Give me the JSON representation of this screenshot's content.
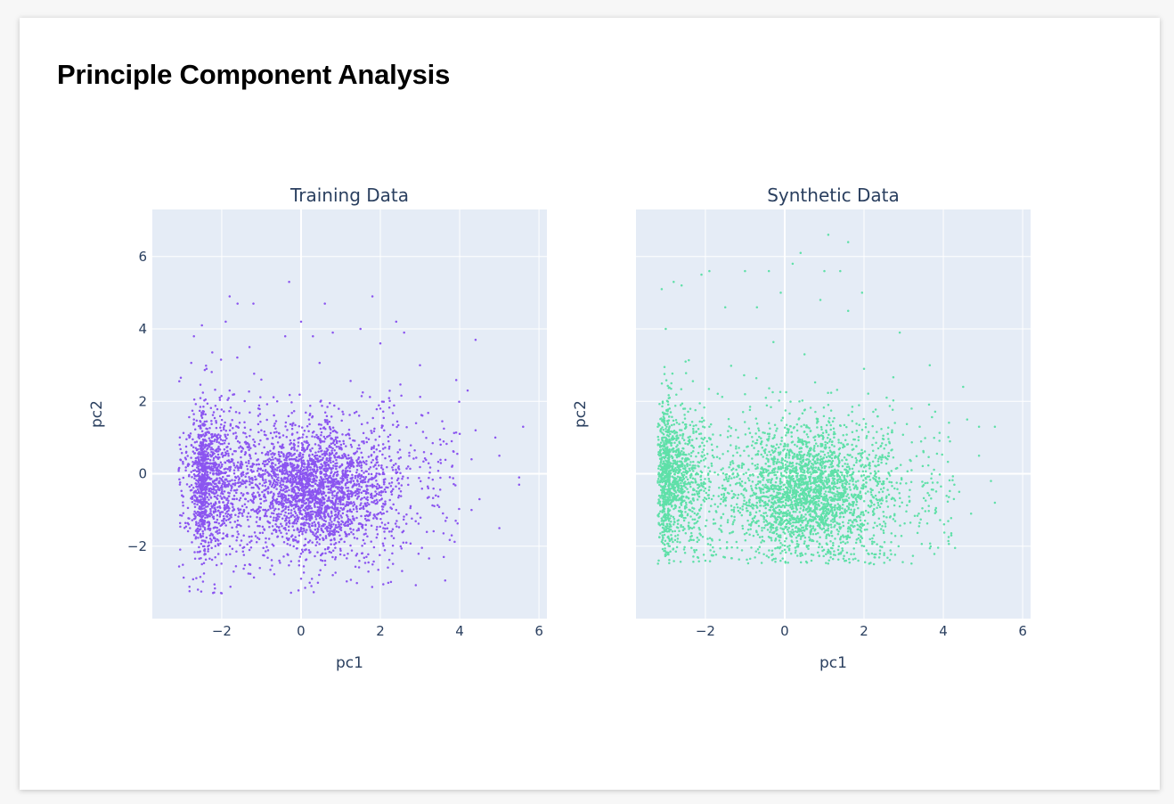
{
  "page": {
    "title": "Principle Component Analysis"
  },
  "theme": {
    "plot_bg": "#e5ecf6",
    "grid_color": "#ffffff",
    "text_color": "#2a3f5f",
    "training_color": "#8b55f0",
    "synthetic_color": "#5fe0a8"
  },
  "chart_data": [
    {
      "type": "scatter",
      "title": "Training Data",
      "xlabel": "pc1",
      "ylabel": "pc2",
      "xlim": [
        -3.75,
        6.2
      ],
      "ylim": [
        -4.0,
        7.3
      ],
      "x_ticks": [
        -2,
        0,
        2,
        4,
        6
      ],
      "y_ticks": [
        -2,
        0,
        2,
        4,
        6
      ],
      "tick_labels_x": [
        "−2",
        "0",
        "2",
        "4",
        "6"
      ],
      "tick_labels_y": [
        "−2",
        "0",
        "2",
        "4",
        "6"
      ],
      "show_y_tick_labels": true,
      "grid": true,
      "color": "#8b55f0",
      "approx_point_count": 4000,
      "distribution": {
        "x_range": [
          -3.1,
          5.6
        ],
        "y_range": [
          -3.3,
          5.35
        ],
        "dense_center": [
          0.3,
          -0.4
        ],
        "secondary_cluster": [
          -2.4,
          -0.2
        ]
      },
      "points": [
        [
          -2.0,
          -3.3
        ],
        [
          -2.6,
          -3.2
        ],
        [
          -1.3,
          -2.5
        ],
        [
          -1.7,
          -2.7
        ],
        [
          0.0,
          -2.9
        ],
        [
          0.8,
          -2.8
        ],
        [
          1.7,
          -2.7
        ],
        [
          2.3,
          -2.2
        ],
        [
          3.6,
          -2.3
        ],
        [
          3.8,
          -1.7
        ],
        [
          -1.8,
          4.9
        ],
        [
          -1.6,
          4.7
        ],
        [
          -1.2,
          4.7
        ],
        [
          -2.5,
          4.1
        ],
        [
          -2.7,
          3.8
        ],
        [
          -1.9,
          4.2
        ],
        [
          -0.3,
          5.3
        ],
        [
          0.0,
          4.2
        ],
        [
          0.6,
          4.7
        ],
        [
          1.8,
          4.9
        ],
        [
          1.5,
          4.0
        ],
        [
          2.4,
          4.2
        ],
        [
          2.6,
          3.9
        ],
        [
          4.4,
          3.7
        ],
        [
          -0.4,
          3.8
        ],
        [
          0.3,
          3.8
        ],
        [
          0.8,
          3.9
        ],
        [
          -1.3,
          3.5
        ],
        [
          2.0,
          3.6
        ],
        [
          3.0,
          3.0
        ],
        [
          4.2,
          2.3
        ],
        [
          4.4,
          1.2
        ],
        [
          4.9,
          1.0
        ],
        [
          5.6,
          1.3
        ],
        [
          4.0,
          1.1
        ],
        [
          3.8,
          0.9
        ],
        [
          4.3,
          0.4
        ],
        [
          5.0,
          0.5
        ],
        [
          5.5,
          -0.1
        ],
        [
          5.5,
          -0.3
        ],
        [
          4.5,
          -0.7
        ],
        [
          4.3,
          -1.0
        ],
        [
          5.0,
          -1.5
        ],
        [
          3.9,
          -1.3
        ],
        [
          3.4,
          -0.6
        ],
        [
          3.1,
          0.6
        ],
        [
          2.9,
          1.4
        ],
        [
          2.7,
          0.2
        ],
        [
          2.4,
          -1.0
        ],
        [
          2.1,
          -1.6
        ],
        [
          -3.0,
          -0.6
        ],
        [
          -2.9,
          0.4
        ],
        [
          -2.8,
          -1.5
        ],
        [
          -2.7,
          1.5
        ],
        [
          -2.6,
          -0.2
        ],
        [
          -2.4,
          0.8
        ],
        [
          -2.3,
          -1.1
        ],
        [
          -2.2,
          1.7
        ],
        [
          -2.1,
          -0.6
        ],
        [
          -2.0,
          0.2
        ],
        [
          -1.8,
          2.3
        ],
        [
          -1.6,
          -1.6
        ],
        [
          -1.4,
          0.6
        ],
        [
          -1.2,
          -0.8
        ],
        [
          -1.0,
          1.2
        ],
        [
          -0.8,
          -0.2
        ],
        [
          -0.6,
          2.0
        ],
        [
          -0.4,
          -1.3
        ],
        [
          -0.2,
          0.4
        ],
        [
          0.0,
          -0.6
        ],
        [
          0.2,
          1.5
        ],
        [
          0.4,
          -0.1
        ],
        [
          0.6,
          -1.4
        ],
        [
          0.8,
          0.7
        ],
        [
          1.0,
          -0.4
        ],
        [
          1.2,
          1.1
        ],
        [
          1.4,
          -0.9
        ],
        [
          1.6,
          0.3
        ],
        [
          1.8,
          -0.3
        ],
        [
          2.0,
          1.8
        ]
      ]
    },
    {
      "type": "scatter",
      "title": "Synthetic Data",
      "xlabel": "pc1",
      "ylabel": "pc2",
      "xlim": [
        -3.75,
        6.2
      ],
      "ylim": [
        -4.0,
        7.3
      ],
      "x_ticks": [
        -2,
        0,
        2,
        4,
        6
      ],
      "y_ticks": [
        -2,
        0,
        2,
        4,
        6
      ],
      "tick_labels_x": [
        "−2",
        "0",
        "2",
        "4",
        "6"
      ],
      "tick_labels_y": [],
      "show_y_tick_labels": false,
      "grid": true,
      "color": "#5fe0a8",
      "approx_point_count": 4000,
      "distribution": {
        "x_range": [
          -3.2,
          5.3
        ],
        "y_range": [
          -2.5,
          6.6
        ],
        "dense_center": [
          0.6,
          -0.5
        ],
        "secondary_cluster": [
          -2.9,
          0.0
        ]
      },
      "points": [
        [
          1.1,
          6.6
        ],
        [
          1.6,
          6.4
        ],
        [
          0.4,
          6.1
        ],
        [
          0.2,
          5.8
        ],
        [
          -0.4,
          5.6
        ],
        [
          1.0,
          5.6
        ],
        [
          1.4,
          5.6
        ],
        [
          -1.0,
          5.6
        ],
        [
          -2.1,
          5.5
        ],
        [
          -1.9,
          5.6
        ],
        [
          -2.8,
          5.3
        ],
        [
          -2.6,
          5.2
        ],
        [
          -3.1,
          5.1
        ],
        [
          1.95,
          5.0
        ],
        [
          -0.1,
          5.0
        ],
        [
          0.9,
          4.8
        ],
        [
          1.6,
          4.5
        ],
        [
          -0.7,
          4.6
        ],
        [
          -1.5,
          4.6
        ],
        [
          -3.0,
          4.0
        ],
        [
          2.9,
          3.9
        ],
        [
          4.5,
          2.4
        ],
        [
          4.6,
          1.5
        ],
        [
          5.3,
          1.3
        ],
        [
          4.9,
          1.3
        ],
        [
          4.9,
          0.5
        ],
        [
          5.2,
          -0.2
        ],
        [
          4.4,
          -0.5
        ],
        [
          5.3,
          -0.8
        ],
        [
          4.7,
          -1.1
        ],
        [
          4.2,
          -1.7
        ],
        [
          3.8,
          -1.0
        ],
        [
          3.5,
          0.6
        ],
        [
          3.2,
          1.8
        ],
        [
          2.4,
          -1.4
        ],
        [
          2.0,
          -2.0
        ],
        [
          0.0,
          -2.1
        ],
        [
          1.1,
          -2.1
        ],
        [
          -2.0,
          -2.4
        ],
        [
          -2.9,
          -2.0
        ],
        [
          -3.1,
          -0.6
        ],
        [
          -3.0,
          0.9
        ],
        [
          -2.9,
          2.1
        ],
        [
          -2.8,
          -1.4
        ],
        [
          -2.7,
          0.2
        ],
        [
          -2.5,
          3.1
        ],
        [
          -2.2,
          -0.3
        ],
        [
          -1.9,
          1.3
        ],
        [
          -1.6,
          -1.2
        ],
        [
          -1.3,
          0.5
        ],
        [
          -1.0,
          2.2
        ],
        [
          -0.7,
          -0.8
        ],
        [
          -0.4,
          1.4
        ],
        [
          -0.1,
          -1.5
        ],
        [
          0.2,
          0.3
        ],
        [
          0.5,
          3.3
        ],
        [
          0.8,
          -0.6
        ],
        [
          1.1,
          1.9
        ],
        [
          1.4,
          -1.1
        ],
        [
          1.7,
          0.8
        ],
        [
          2.0,
          2.9
        ],
        [
          2.3,
          -0.2
        ],
        [
          2.6,
          1.1
        ],
        [
          2.9,
          -0.9
        ],
        [
          3.2,
          0.1
        ]
      ]
    }
  ]
}
